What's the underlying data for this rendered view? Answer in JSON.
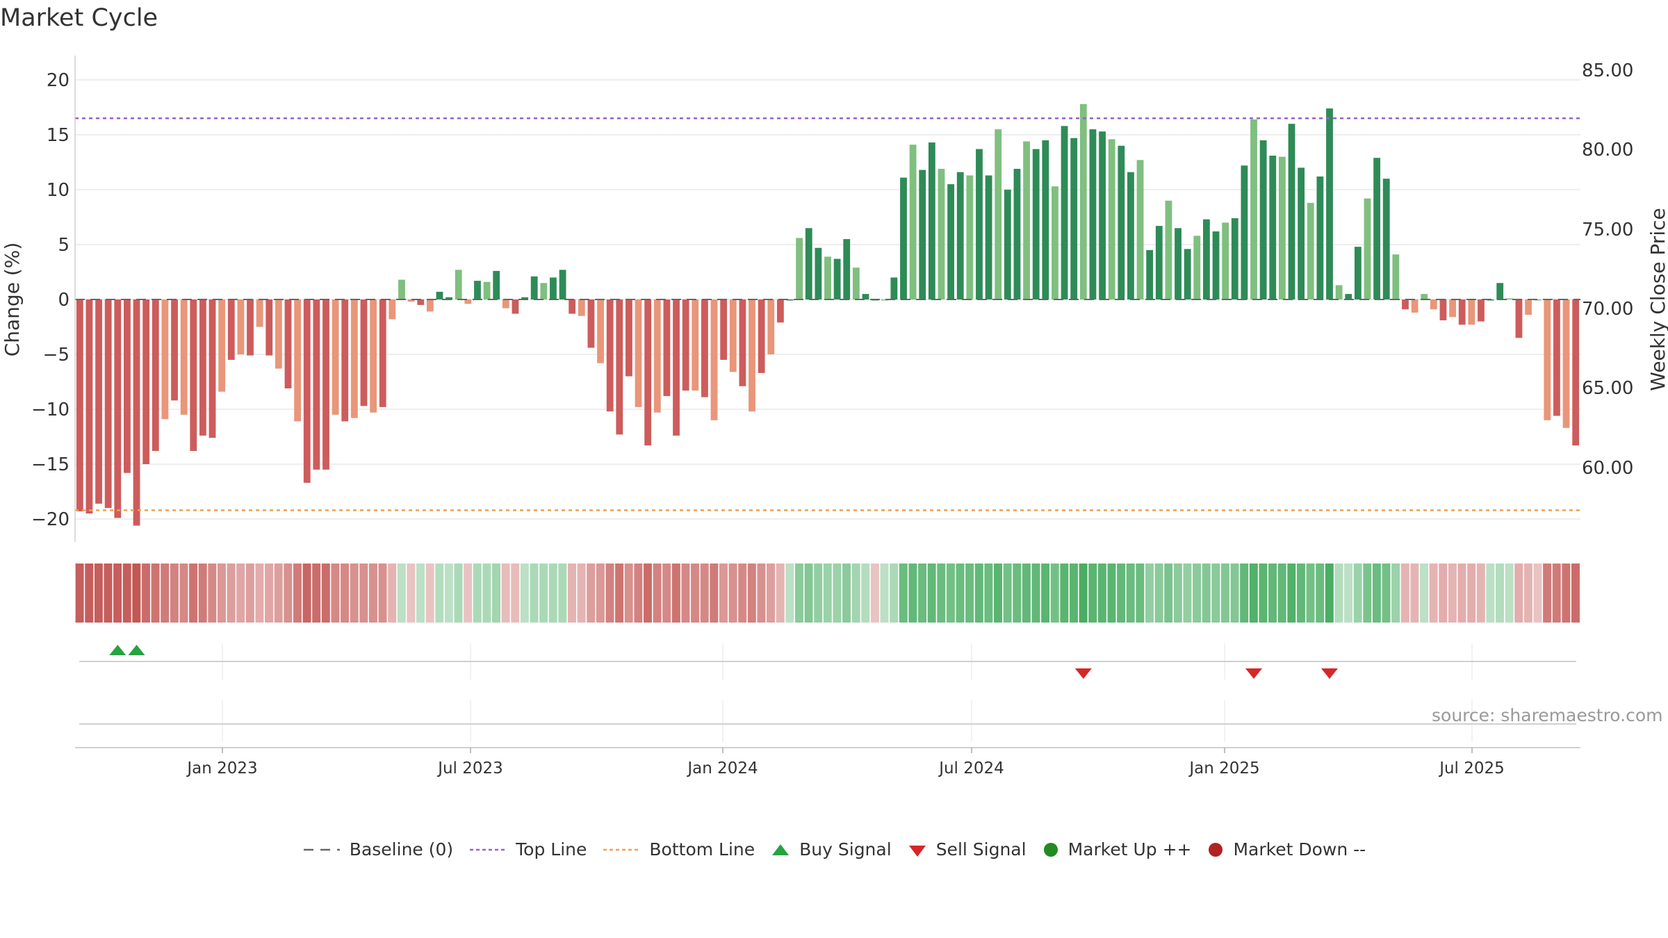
{
  "title": "Market Cycle",
  "source_note": "source: sharemaestro.com",
  "colors": {
    "pos_dark": "#2e8b57",
    "pos_light": "#7fbf7f",
    "neg_dark": "#cd5c5c",
    "neg_light": "#e9967a",
    "top_line": "#9a5fd1",
    "bottom_line": "#f0a050",
    "buy_signal": "#27a340",
    "sell_signal": "#d62728",
    "market_up": "#228b22",
    "market_down": "#b22222",
    "baseline": "#666666"
  },
  "legend": [
    {
      "key": "baseline",
      "label": "Baseline (0)",
      "icon": "dash-line-icon"
    },
    {
      "key": "top_line",
      "label": "Top Line",
      "icon": "dotted-line-icon"
    },
    {
      "key": "bottom_line",
      "label": "Bottom Line",
      "icon": "dotted-line-icon"
    },
    {
      "key": "buy_signal",
      "label": "Buy Signal",
      "icon": "triangle-up-icon"
    },
    {
      "key": "sell_signal",
      "label": "Sell Signal",
      "icon": "triangle-down-icon"
    },
    {
      "key": "market_up",
      "label": "Market Up ++",
      "icon": "circle-icon"
    },
    {
      "key": "market_down",
      "label": "Market Down --",
      "icon": "circle-icon"
    }
  ],
  "chart_data": {
    "type": "bar",
    "ylabel": "Change (%)",
    "y2label": "Weekly Close Price",
    "ylim": [
      -22,
      22
    ],
    "yticks": [
      -20,
      -15,
      -10,
      -5,
      0,
      5,
      10,
      15,
      20
    ],
    "y2ticks": [
      "60.00",
      "65.00",
      "70.00",
      "75.00",
      "80.00",
      "85.00"
    ],
    "xticks": [
      "Jan 2023",
      "Jul 2023",
      "Jan 2024",
      "Jul 2024",
      "Jan 2025",
      "Jul 2025"
    ],
    "top_line": 16.5,
    "bottom_line": -19.2,
    "baseline": 0,
    "values": [
      -19.3,
      -19.5,
      -18.6,
      -19,
      -19.9,
      -15.8,
      -20.6,
      -15,
      -13.8,
      -10.9,
      -9.2,
      -10.5,
      -13.8,
      -12.4,
      -12.6,
      -8.4,
      -5.5,
      -5,
      -5.1,
      -2.5,
      -5.1,
      -6.3,
      -8.1,
      -11.1,
      -16.7,
      -15.5,
      -15.5,
      -10.5,
      -11.1,
      -10.8,
      -9.7,
      -10.3,
      -9.8,
      -1.8,
      1.8,
      -0.2,
      -0.5,
      -1.1,
      0.7,
      0.2,
      2.7,
      -0.4,
      1.7,
      1.6,
      2.6,
      -0.8,
      -1.3,
      0.2,
      2.1,
      1.5,
      2,
      2.7,
      -1.3,
      -1.5,
      -4.4,
      -5.8,
      -10.2,
      -12.3,
      -7,
      -9.8,
      -13.3,
      -10.3,
      -8.8,
      -12.4,
      -8.3,
      -8.3,
      -8.9,
      -11,
      -5.5,
      -6.6,
      -7.9,
      -10.2,
      -6.7,
      -5,
      -2.1,
      0,
      5.6,
      6.5,
      4.7,
      3.9,
      3.7,
      5.5,
      2.9,
      0.5,
      0,
      0,
      2,
      11.1,
      14.1,
      11.8,
      14.3,
      11.9,
      10.5,
      11.6,
      11.3,
      13.7,
      11.3,
      15.5,
      10,
      11.9,
      14.4,
      13.7,
      14.5,
      10.3,
      15.8,
      14.7,
      17.8,
      15.5,
      15.3,
      14.6,
      14,
      11.6,
      12.7,
      4.5,
      6.7,
      9,
      6.5,
      4.6,
      5.8,
      7.3,
      6.2,
      7,
      7.4,
      12.2,
      16.4,
      14.5,
      13.1,
      13,
      16,
      12,
      8.8,
      11.2,
      17.4,
      1.3,
      0.5,
      4.8,
      9.2,
      12.9,
      11,
      4.1,
      -0.9,
      -1.2,
      0.5,
      -0.9,
      -1.9,
      -1.6,
      -2.3,
      -2.3,
      -2,
      0,
      1.5,
      0.1,
      -3.5,
      -1.4,
      0,
      -11,
      -10.6,
      -11.7,
      -13.3
    ],
    "heat_strip": [
      -0.9,
      -0.9,
      -0.9,
      -0.9,
      -0.9,
      -0.9,
      -0.95,
      -0.8,
      -0.75,
      -0.7,
      -0.65,
      -0.6,
      -0.75,
      -0.7,
      -0.6,
      -0.5,
      -0.45,
      -0.4,
      -0.45,
      -0.35,
      -0.4,
      -0.45,
      -0.55,
      -0.7,
      -0.85,
      -0.8,
      -0.8,
      -0.6,
      -0.6,
      -0.55,
      -0.55,
      -0.55,
      -0.55,
      -0.3,
      0.2,
      -0.2,
      0.2,
      -0.2,
      0.25,
      0.2,
      0.3,
      -0.2,
      0.3,
      0.3,
      0.35,
      -0.25,
      -0.25,
      0.2,
      0.3,
      0.3,
      0.3,
      0.3,
      -0.3,
      -0.3,
      -0.45,
      -0.5,
      -0.65,
      -0.75,
      -0.55,
      -0.65,
      -0.8,
      -0.65,
      -0.6,
      -0.75,
      -0.6,
      -0.6,
      -0.6,
      -0.7,
      -0.5,
      -0.55,
      -0.6,
      -0.65,
      -0.55,
      -0.45,
      -0.3,
      0.2,
      0.5,
      0.55,
      0.45,
      0.4,
      0.4,
      0.5,
      0.35,
      0.25,
      -0.2,
      0.2,
      0.3,
      0.7,
      0.75,
      0.7,
      0.75,
      0.7,
      0.65,
      0.7,
      0.7,
      0.75,
      0.7,
      0.8,
      0.65,
      0.7,
      0.75,
      0.75,
      0.8,
      0.65,
      0.8,
      0.8,
      0.9,
      0.8,
      0.8,
      0.8,
      0.75,
      0.7,
      0.7,
      0.45,
      0.5,
      0.6,
      0.5,
      0.45,
      0.5,
      0.55,
      0.5,
      0.55,
      0.55,
      0.75,
      0.85,
      0.8,
      0.75,
      0.75,
      0.85,
      0.75,
      0.65,
      0.7,
      0.9,
      0.25,
      0.2,
      0.4,
      0.6,
      0.7,
      0.65,
      0.4,
      -0.3,
      -0.3,
      0.2,
      -0.3,
      -0.35,
      -0.3,
      -0.35,
      -0.35,
      -0.3,
      0.2,
      0.25,
      0.2,
      -0.35,
      -0.3,
      -0.2,
      -0.7,
      -0.7,
      -0.75,
      -0.8
    ],
    "buy_signals": [
      4,
      6
    ],
    "sell_signals": [
      106,
      124,
      132
    ],
    "market_up": [],
    "market_down": []
  }
}
